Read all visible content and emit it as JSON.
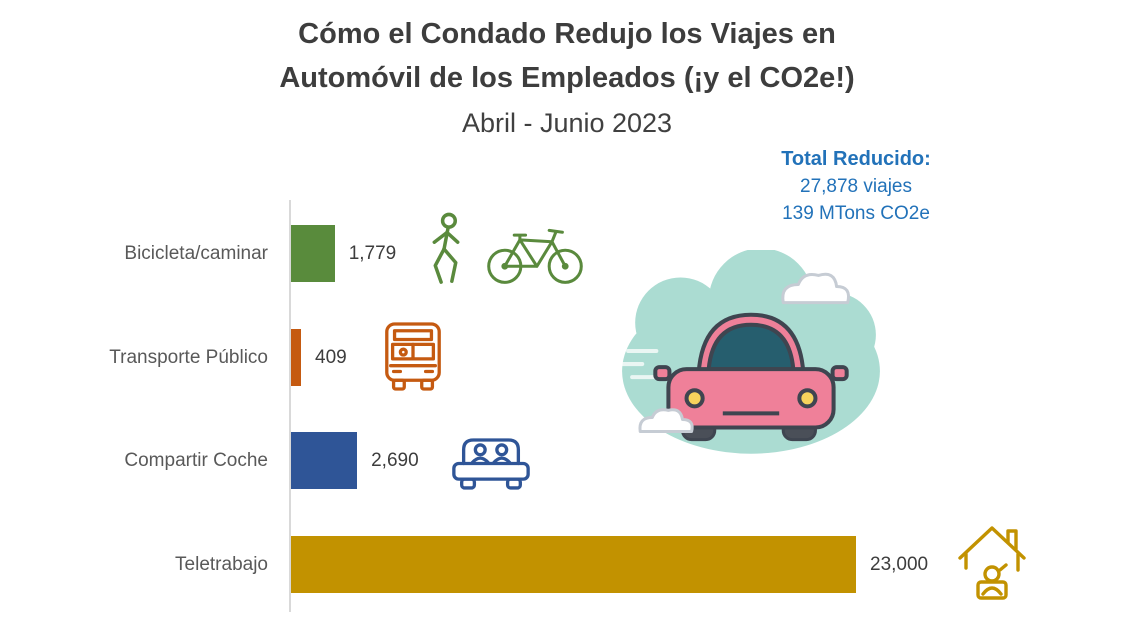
{
  "header": {
    "title_line1": "Cómo el Condado Redujo los Viajes en",
    "title_line2": "Automóvil de los Empleados (¡y el CO2e!)",
    "subtitle": "Abril - Junio 2023"
  },
  "total_reduced": {
    "heading": "Total Reducido:",
    "trips": "27,878 viajes",
    "co2e": "139 MTons CO2e"
  },
  "chart_data": {
    "type": "bar",
    "orientation": "horizontal",
    "title": "Cómo el Condado Redujo los Viajes en Automóvil de los Empleados (¡y el CO2e!)",
    "subtitle": "Abril - Junio 2023",
    "categories": [
      "Bicicleta/caminar",
      "Transporte Público",
      "Compartir Coche",
      "Teletrabajo"
    ],
    "values": [
      1779,
      409,
      2690,
      23000
    ],
    "value_labels": [
      "1,779",
      "409",
      "2,690",
      "23,000"
    ],
    "bar_colors": [
      "#598b3c",
      "#c55a11",
      "#2f5597",
      "#c29200"
    ],
    "icons": [
      "pedestrian-icon",
      "bicycle-icon",
      "bus-icon",
      "carpool-car-icon",
      "telework-house-icon",
      "car-in-cloud-illustration"
    ],
    "xlim": [
      0,
      23000
    ],
    "xlabel": "",
    "ylabel": "",
    "grid": false,
    "legend": false,
    "annotations": [
      "Total Reducido:",
      "27,878 viajes",
      "139 MTons CO2e"
    ]
  },
  "colors": {
    "title_text": "#3d3d3d",
    "category_text": "#595959",
    "value_text": "#3d3d3d",
    "accent_blue": "#2272b9",
    "axis_line": "#d9d9d9",
    "green": "#5a8a3d",
    "orange": "#c55a11",
    "blue": "#2f5597",
    "gold": "#c29200",
    "cloud_teal": "#abdcd2",
    "car_pink": "#ef8099"
  }
}
